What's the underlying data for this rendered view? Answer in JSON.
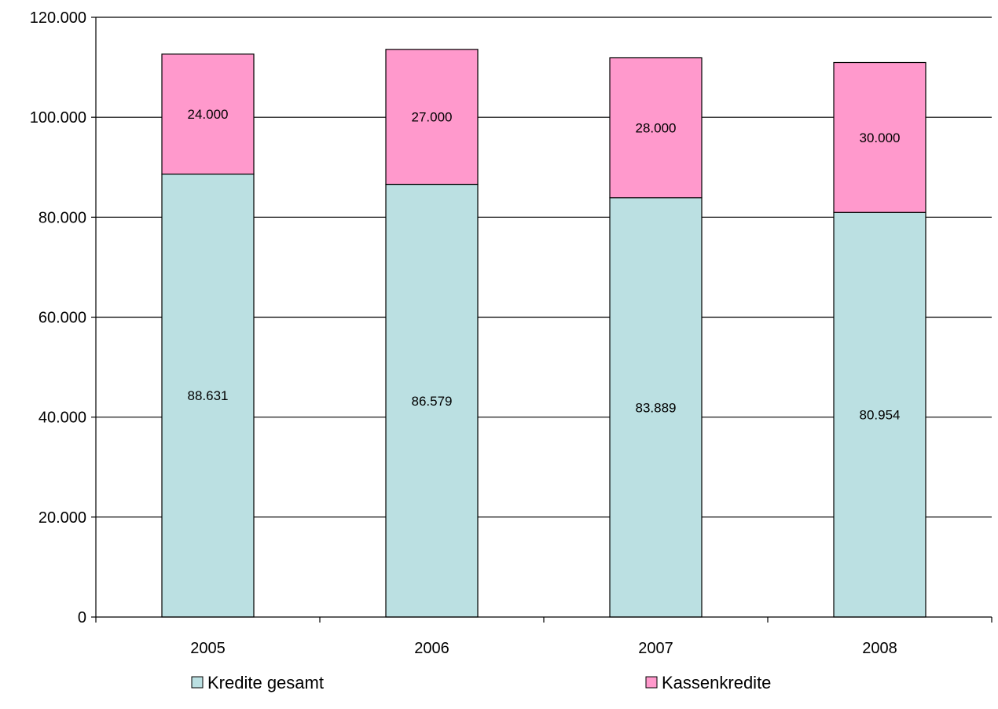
{
  "chart_data": {
    "type": "bar",
    "stacked": true,
    "categories": [
      "2005",
      "2006",
      "2007",
      "2008"
    ],
    "series": [
      {
        "name": "Kredite gesamt",
        "color": "#bbe0e2",
        "values": [
          88631,
          86579,
          83889,
          80954
        ],
        "labels": [
          "88.631",
          "86.579",
          "83.889",
          "80.954"
        ]
      },
      {
        "name": "Kassenkredite",
        "color": "#ff99cc",
        "values": [
          24000,
          27000,
          28000,
          30000
        ],
        "labels": [
          "24.000",
          "27.000",
          "28.000",
          "30.000"
        ]
      }
    ],
    "ylim": [
      0,
      120000
    ],
    "yticks": [
      0,
      20000,
      40000,
      60000,
      80000,
      100000,
      120000
    ],
    "ytick_labels": [
      "0",
      "20.000",
      "40.000",
      "60.000",
      "80.000",
      "100.000",
      "120.000"
    ],
    "grid": true,
    "legend_position": "bottom"
  }
}
